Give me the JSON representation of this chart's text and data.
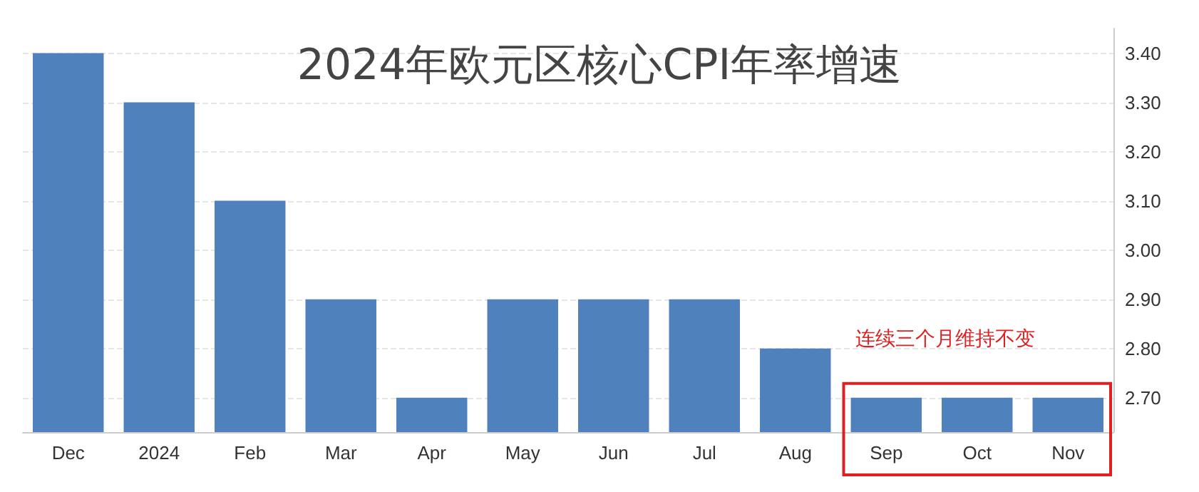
{
  "chart_data": {
    "type": "bar",
    "title": "2024年欧元区核心CPI年率增速",
    "categories": [
      "Dec",
      "2024",
      "Feb",
      "Mar",
      "Apr",
      "May",
      "Jun",
      "Jul",
      "Aug",
      "Sep",
      "Oct",
      "Nov"
    ],
    "values": [
      3.4,
      3.3,
      3.1,
      2.9,
      2.7,
      2.9,
      2.9,
      2.9,
      2.8,
      2.7,
      2.7,
      2.7
    ],
    "color": "#4f81bd",
    "ylim": [
      2.63,
      3.45
    ],
    "yticks": [
      {
        "value": 2.7,
        "label": "2.70"
      },
      {
        "value": 2.8,
        "label": "2.80"
      },
      {
        "value": 2.9,
        "label": "2.90"
      },
      {
        "value": 3.0,
        "label": "3.00"
      },
      {
        "value": 3.1,
        "label": "3.10"
      },
      {
        "value": 3.2,
        "label": "3.20"
      },
      {
        "value": 3.3,
        "label": "3.30"
      },
      {
        "value": 3.4,
        "label": "3.40"
      }
    ],
    "grid": "y",
    "annotations": [
      "连续三个月维持不变"
    ]
  }
}
